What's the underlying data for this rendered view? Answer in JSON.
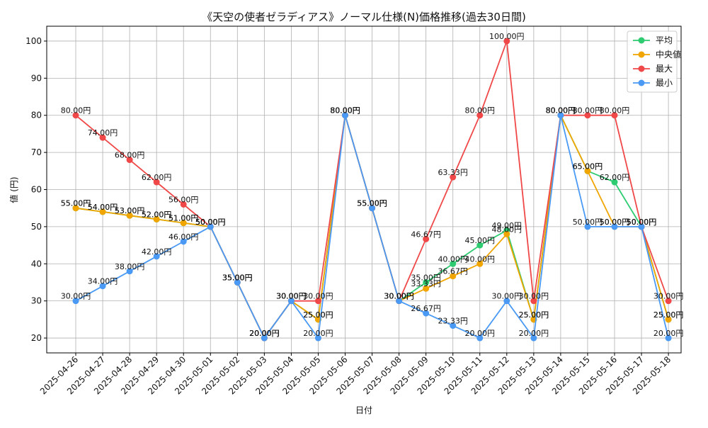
{
  "chart_data": {
    "type": "line",
    "title": "《天空の使者ゼラディアス》ノーマル仕様(N)価格推移(過去30日間)",
    "xlabel": "日付",
    "ylabel": "値 (円)",
    "ylim": [
      16,
      104
    ],
    "yticks": [
      "20",
      "30",
      "40",
      "50",
      "60",
      "70",
      "80",
      "90",
      "100"
    ],
    "grid": true,
    "legend_position": "top-right",
    "label_suffix": "円",
    "categories": [
      "2025-04-26",
      "2025-04-27",
      "2025-04-28",
      "2025-04-29",
      "2025-04-30",
      "2025-05-01",
      "2025-05-02",
      "2025-05-03",
      "2025-05-04",
      "2025-05-05",
      "2025-05-06",
      "2025-05-07",
      "2025-05-08",
      "2025-05-09",
      "2025-05-10",
      "2025-05-11",
      "2025-05-12",
      "2025-05-13",
      "2025-05-14",
      "2025-05-15",
      "2025-05-16",
      "2025-05-17",
      "2025-05-18"
    ],
    "series": [
      {
        "name": "平均",
        "color": "#2ecc71",
        "values": [
          55,
          54,
          53,
          52,
          51,
          50,
          35,
          20,
          30,
          25,
          80,
          55,
          30,
          35,
          40,
          45,
          49,
          25,
          80,
          65,
          62,
          50,
          25
        ]
      },
      {
        "name": "中央値",
        "color": "#f0a500",
        "values": [
          55,
          54,
          53,
          52,
          51,
          50,
          35,
          20,
          30,
          25,
          80,
          55,
          30,
          33.33,
          36.67,
          40,
          48,
          25,
          80,
          65,
          50,
          50,
          25
        ]
      },
      {
        "name": "最大",
        "color": "#f04848",
        "values": [
          80,
          74,
          68,
          62,
          56,
          50,
          35,
          20,
          30,
          30,
          80,
          55,
          30,
          46.67,
          63.33,
          80,
          100,
          30,
          80,
          80,
          80,
          50,
          30
        ]
      },
      {
        "name": "最小",
        "color": "#4a9af5",
        "values": [
          30,
          34,
          38,
          42,
          46,
          50,
          35,
          20,
          30,
          20,
          80,
          55,
          30,
          26.67,
          23.33,
          20,
          30,
          20,
          80,
          50,
          50,
          50,
          20
        ]
      }
    ]
  }
}
